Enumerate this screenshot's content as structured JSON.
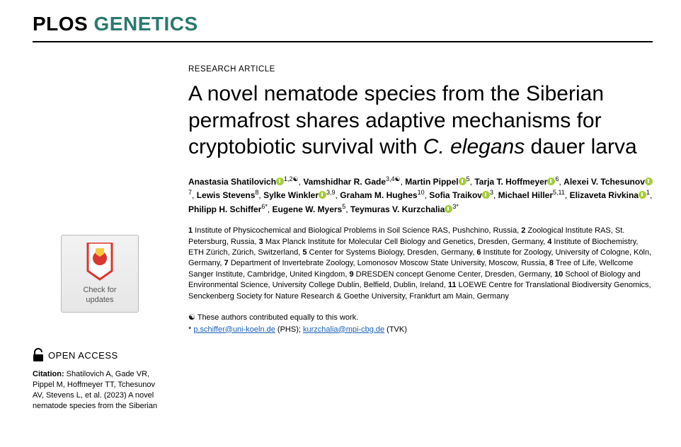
{
  "journal": {
    "plos": "PLOS",
    "name": "GENETICS"
  },
  "article_type": "RESEARCH ARTICLE",
  "title_parts": {
    "pre": "A novel nematode species from the Siberian permafrost shares adaptive mechanisms for cryptobiotic survival with ",
    "italic": "C. elegans",
    "post": " dauer larva"
  },
  "authors": [
    {
      "name": "Anastasia Shatilovich",
      "orcid": true,
      "affs": "1,2",
      "contrib": "☯"
    },
    {
      "name": "Vamshidhar R. Gade",
      "orcid": false,
      "affs": "3,4",
      "contrib": "☯"
    },
    {
      "name": "Martin Pippel",
      "orcid": true,
      "affs": "5"
    },
    {
      "name": "Tarja T. Hoffmeyer",
      "orcid": true,
      "affs": "6"
    },
    {
      "name": "Alexei V. Tchesunov",
      "orcid": true,
      "affs": "7"
    },
    {
      "name": "Lewis Stevens",
      "orcid": false,
      "affs": "8"
    },
    {
      "name": "Sylke Winkler",
      "orcid": true,
      "affs": "3,9"
    },
    {
      "name": "Graham M. Hughes",
      "orcid": false,
      "affs": "10"
    },
    {
      "name": "Sofia Traikov",
      "orcid": true,
      "affs": "3"
    },
    {
      "name": "Michael Hiller",
      "orcid": false,
      "affs": "5,11"
    },
    {
      "name": "Elizaveta Rivkina",
      "orcid": true,
      "affs": "1"
    },
    {
      "name": "Philipp H. Schiffer",
      "orcid": false,
      "affs": "6",
      "corr": "*"
    },
    {
      "name": "Eugene W. Myers",
      "orcid": false,
      "affs": "5"
    },
    {
      "name": "Teymuras V. Kurzchalia",
      "orcid": true,
      "affs": "3",
      "corr": "*"
    }
  ],
  "affiliations": [
    {
      "n": "1",
      "text": "Institute of Physicochemical and Biological Problems in Soil Science RAS, Pushchino, Russia,"
    },
    {
      "n": "2",
      "text": "Zoological Institute RAS, St. Petersburg, Russia,"
    },
    {
      "n": "3",
      "text": "Max Planck Institute for Molecular Cell Biology and Genetics, Dresden, Germany,"
    },
    {
      "n": "4",
      "text": "Institute of Biochemistry, ETH Zürich, Zürich, Switzerland,"
    },
    {
      "n": "5",
      "text": "Center for Systems Biology, Dresden, Germany,"
    },
    {
      "n": "6",
      "text": "Institute for Zoology, University of Cologne, Köln, Germany,"
    },
    {
      "n": "7",
      "text": "Department of Invertebrate Zoology, Lomonosov Moscow State University, Moscow, Russia,"
    },
    {
      "n": "8",
      "text": "Tree of Life, Wellcome Sanger Institute, Cambridge, United Kingdom,"
    },
    {
      "n": "9",
      "text": "DRESDEN concept Genome Center, Dresden, Germany,"
    },
    {
      "n": "10",
      "text": "School of Biology and Environmental Science, University College Dublin, Belfield, Dublin, Ireland,"
    },
    {
      "n": "11",
      "text": "LOEWE Centre for Translational Biodiversity Genomics, Senckenberg Society for Nature Research & Goethe University, Frankfurt am Main, Germany"
    }
  ],
  "contrib_note": "☯ These authors contributed equally to this work.",
  "correspondence": {
    "prefix": "* ",
    "email1": "p.schiffer@uni-koeln.de",
    "initials1": " (PHS); ",
    "email2": "kurzchalia@mpi-cbg.de",
    "initials2": " (TVK)"
  },
  "crossmark": {
    "line1": "Check for",
    "line2": "updates"
  },
  "open_access": "OPEN ACCESS",
  "citation": {
    "label": "Citation: ",
    "text": "Shatilovich A, Gade VR, Pippel M, Hoffmeyer TT, Tchesunov AV, Stevens L, et al. (2023) A novel nematode species from the Siberian"
  },
  "colors": {
    "journal_accent": "#2a7a6e",
    "orcid": "#a5cd39",
    "link": "#1a5fb4",
    "crossmark_red": "#d9362f",
    "crossmark_yellow": "#f9c642"
  }
}
